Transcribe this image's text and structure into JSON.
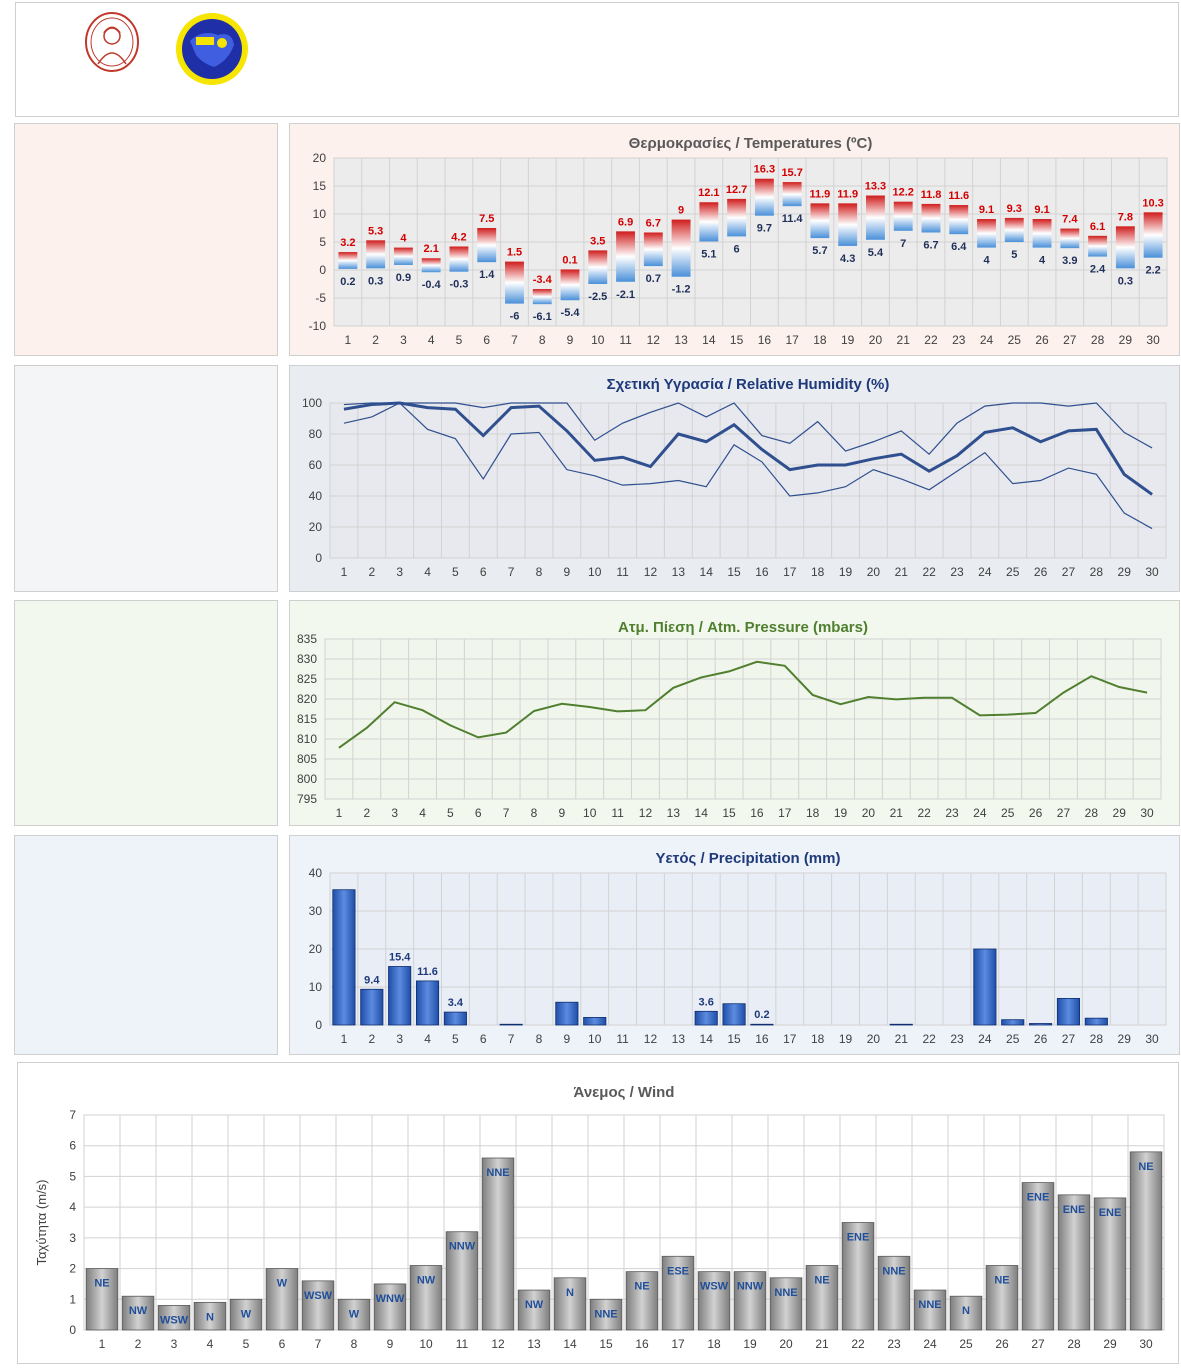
{
  "days": [
    "1",
    "2",
    "3",
    "4",
    "5",
    "6",
    "7",
    "8",
    "9",
    "10",
    "11",
    "12",
    "13",
    "14",
    "15",
    "16",
    "17",
    "18",
    "19",
    "20",
    "21",
    "22",
    "23",
    "24",
    "25",
    "26",
    "27",
    "28",
    "29",
    "30"
  ],
  "colors": {
    "temp_bg": "#fcf1ec",
    "hum_bg": "#f3f4f6",
    "pres_bg": "#f3f8ee",
    "prec_bg": "#eef3f9",
    "temp_plot": "#ececec",
    "hum_plot": "#e7e9ee",
    "pres_plot": "#f1f6ec",
    "prec_plot": "#e9eef6",
    "max_label": "#d40000",
    "min_label": "#1f2f5a",
    "hum_line": "#2f4f8f",
    "pres_line": "#4f7f2f",
    "prec_bar": "#3366cc",
    "wind_bar": "#9b9b9b",
    "dir_label": "#1f4e9a",
    "logo_red": "#c0392b",
    "logo_blue": "#1e2fa8",
    "logo_yellow": "#f5e500"
  },
  "logos": {
    "left": "university-seal-logo",
    "right": "meteorology-lab-logo"
  },
  "chart_data": [
    {
      "type": "bar",
      "title": "Θερμοκρασίες / Temperatures (ºC)",
      "categories": [
        "1",
        "2",
        "3",
        "4",
        "5",
        "6",
        "7",
        "8",
        "9",
        "10",
        "11",
        "12",
        "13",
        "14",
        "15",
        "16",
        "17",
        "18",
        "19",
        "20",
        "21",
        "22",
        "23",
        "24",
        "25",
        "26",
        "27",
        "28",
        "29",
        "30"
      ],
      "series": [
        {
          "name": "max",
          "values": [
            3.2,
            5.3,
            4,
            2.1,
            4.2,
            7.5,
            1.5,
            -3.4,
            0.1,
            3.5,
            6.9,
            6.7,
            9,
            12.1,
            12.7,
            16.3,
            15.7,
            11.9,
            11.9,
            13.3,
            12.2,
            11.8,
            11.6,
            9.1,
            9.3,
            9.1,
            7.4,
            6.1,
            7.8,
            10.3
          ]
        },
        {
          "name": "min",
          "values": [
            0.2,
            0.3,
            0.9,
            -0.4,
            -0.3,
            1.4,
            -6,
            -6.1,
            -5.4,
            -2.5,
            -2.1,
            0.7,
            -1.2,
            5.1,
            6,
            9.7,
            11.4,
            5.7,
            4.3,
            5.4,
            7,
            6.7,
            6.4,
            4,
            5,
            4,
            3.9,
            2.4,
            0.3,
            2.2
          ]
        }
      ],
      "ylim": [
        -10,
        20
      ],
      "yticks": [
        "20",
        "15",
        "10",
        "5",
        "0",
        "-5",
        "-10"
      ],
      "grid": true
    },
    {
      "type": "line",
      "title": "Σχετική Υγρασία / Relative Humidity (%)",
      "categories": [
        "1",
        "2",
        "3",
        "4",
        "5",
        "6",
        "7",
        "8",
        "9",
        "10",
        "11",
        "12",
        "13",
        "14",
        "15",
        "16",
        "17",
        "18",
        "19",
        "20",
        "21",
        "22",
        "23",
        "24",
        "25",
        "26",
        "27",
        "28",
        "29",
        "30"
      ],
      "series": [
        {
          "values": [
            87,
            91,
            100,
            83,
            77,
            51,
            80,
            81,
            57,
            53,
            47,
            48,
            50,
            46,
            73,
            62,
            40,
            42,
            46,
            57,
            51,
            44,
            56,
            68,
            48,
            50,
            58,
            54,
            29,
            19
          ]
        },
        {
          "values": [
            96,
            99,
            100,
            97,
            96,
            79,
            97,
            98,
            82,
            63,
            65,
            59,
            80,
            75,
            86,
            70,
            57,
            60,
            60,
            64,
            67,
            56,
            66,
            81,
            84,
            75,
            82,
            83,
            54,
            41
          ]
        },
        {
          "values": [
            99,
            100,
            100,
            100,
            100,
            97,
            100,
            100,
            100,
            76,
            87,
            94,
            100,
            91,
            100,
            79,
            74,
            88,
            69,
            75,
            82,
            67,
            87,
            98,
            100,
            100,
            98,
            100,
            81,
            71
          ]
        }
      ],
      "ylim": [
        0,
        100
      ],
      "yticks": [
        "100",
        "80",
        "60",
        "40",
        "20",
        "0"
      ],
      "grid": true
    },
    {
      "type": "line",
      "title": "Ατμ. Πίεση / Atm. Pressure (mbars)",
      "categories": [
        "1",
        "2",
        "3",
        "4",
        "5",
        "6",
        "7",
        "8",
        "9",
        "10",
        "11",
        "12",
        "13",
        "14",
        "15",
        "16",
        "17",
        "18",
        "19",
        "20",
        "21",
        "22",
        "23",
        "24",
        "25",
        "26",
        "27",
        "28",
        "29",
        "30"
      ],
      "series": [
        {
          "values": [
            807.8,
            812.8,
            819.2,
            817.2,
            813.4,
            810.4,
            811.6,
            817,
            818.8,
            818,
            816.9,
            817.2,
            822.8,
            825.4,
            826.9,
            829.3,
            828.3,
            821,
            818.7,
            820.5,
            819.9,
            820.3,
            820.3,
            815.9,
            816.1,
            816.5,
            821.6,
            825.7,
            823,
            821.6
          ]
        }
      ],
      "ylim": [
        795,
        835
      ],
      "yticks": [
        "835",
        "830",
        "825",
        "820",
        "815",
        "810",
        "805",
        "800",
        "795"
      ],
      "grid": true
    },
    {
      "type": "bar",
      "title": "Υετός / Precipitation (mm)",
      "categories": [
        "1",
        "2",
        "3",
        "4",
        "5",
        "6",
        "7",
        "8",
        "9",
        "10",
        "11",
        "12",
        "13",
        "14",
        "15",
        "16",
        "17",
        "18",
        "19",
        "20",
        "21",
        "22",
        "23",
        "24",
        "25",
        "26",
        "27",
        "28",
        "29",
        "30"
      ],
      "values": [
        35.6,
        9.4,
        15.4,
        11.6,
        3.4,
        0,
        0.2,
        0,
        6,
        2,
        0,
        0,
        0,
        3.6,
        5.6,
        0.2,
        0,
        0,
        0,
        0,
        0.2,
        0,
        0,
        20,
        1.4,
        0.4,
        7,
        1.8,
        0,
        0
      ],
      "data_labels": [
        "",
        "9.4",
        "15.4",
        "11.6",
        "3.4",
        "",
        "",
        "",
        "",
        "",
        "",
        "",
        "",
        "3.6",
        "",
        "0.2",
        "",
        "",
        "",
        "",
        "",
        "",
        "",
        "",
        "",
        "",
        "",
        "",
        "",
        ""
      ],
      "ylim": [
        0,
        40
      ],
      "yticks": [
        "40",
        "30",
        "20",
        "10",
        "0"
      ],
      "grid": true
    },
    {
      "type": "bar",
      "title": "Άνεμος / Wind",
      "ylabel": "Ταχύτητα  (m/s)",
      "categories": [
        "1",
        "2",
        "3",
        "4",
        "5",
        "6",
        "7",
        "8",
        "9",
        "10",
        "11",
        "12",
        "13",
        "14",
        "15",
        "16",
        "17",
        "18",
        "19",
        "20",
        "21",
        "22",
        "23",
        "24",
        "25",
        "26",
        "27",
        "28",
        "29",
        "30"
      ],
      "values": [
        2,
        1.1,
        0.8,
        0.9,
        1,
        2,
        1.6,
        1,
        1.5,
        2.1,
        3.2,
        5.6,
        1.3,
        1.7,
        1,
        1.9,
        2.4,
        1.9,
        1.9,
        1.7,
        2.1,
        3.5,
        2.4,
        1.3,
        1.1,
        2.1,
        4.8,
        4.4,
        4.3,
        5.8
      ],
      "directions": [
        "NE",
        "NW",
        "WSW",
        "N",
        "W",
        "W",
        "WSW",
        "W",
        "WNW",
        "NW",
        "NNW",
        "NNE",
        "NW",
        "N",
        "NNE",
        "NE",
        "ESE",
        "WSW",
        "NNW",
        "NNE",
        "NE",
        "ENE",
        "NNE",
        "NNE",
        "N",
        "NE",
        "ENE",
        "ENE",
        "ENE",
        "NE"
      ],
      "ylim": [
        0,
        7
      ],
      "yticks": [
        "7",
        "6",
        "5",
        "4",
        "3",
        "2",
        "1",
        "0"
      ],
      "grid": true
    }
  ]
}
